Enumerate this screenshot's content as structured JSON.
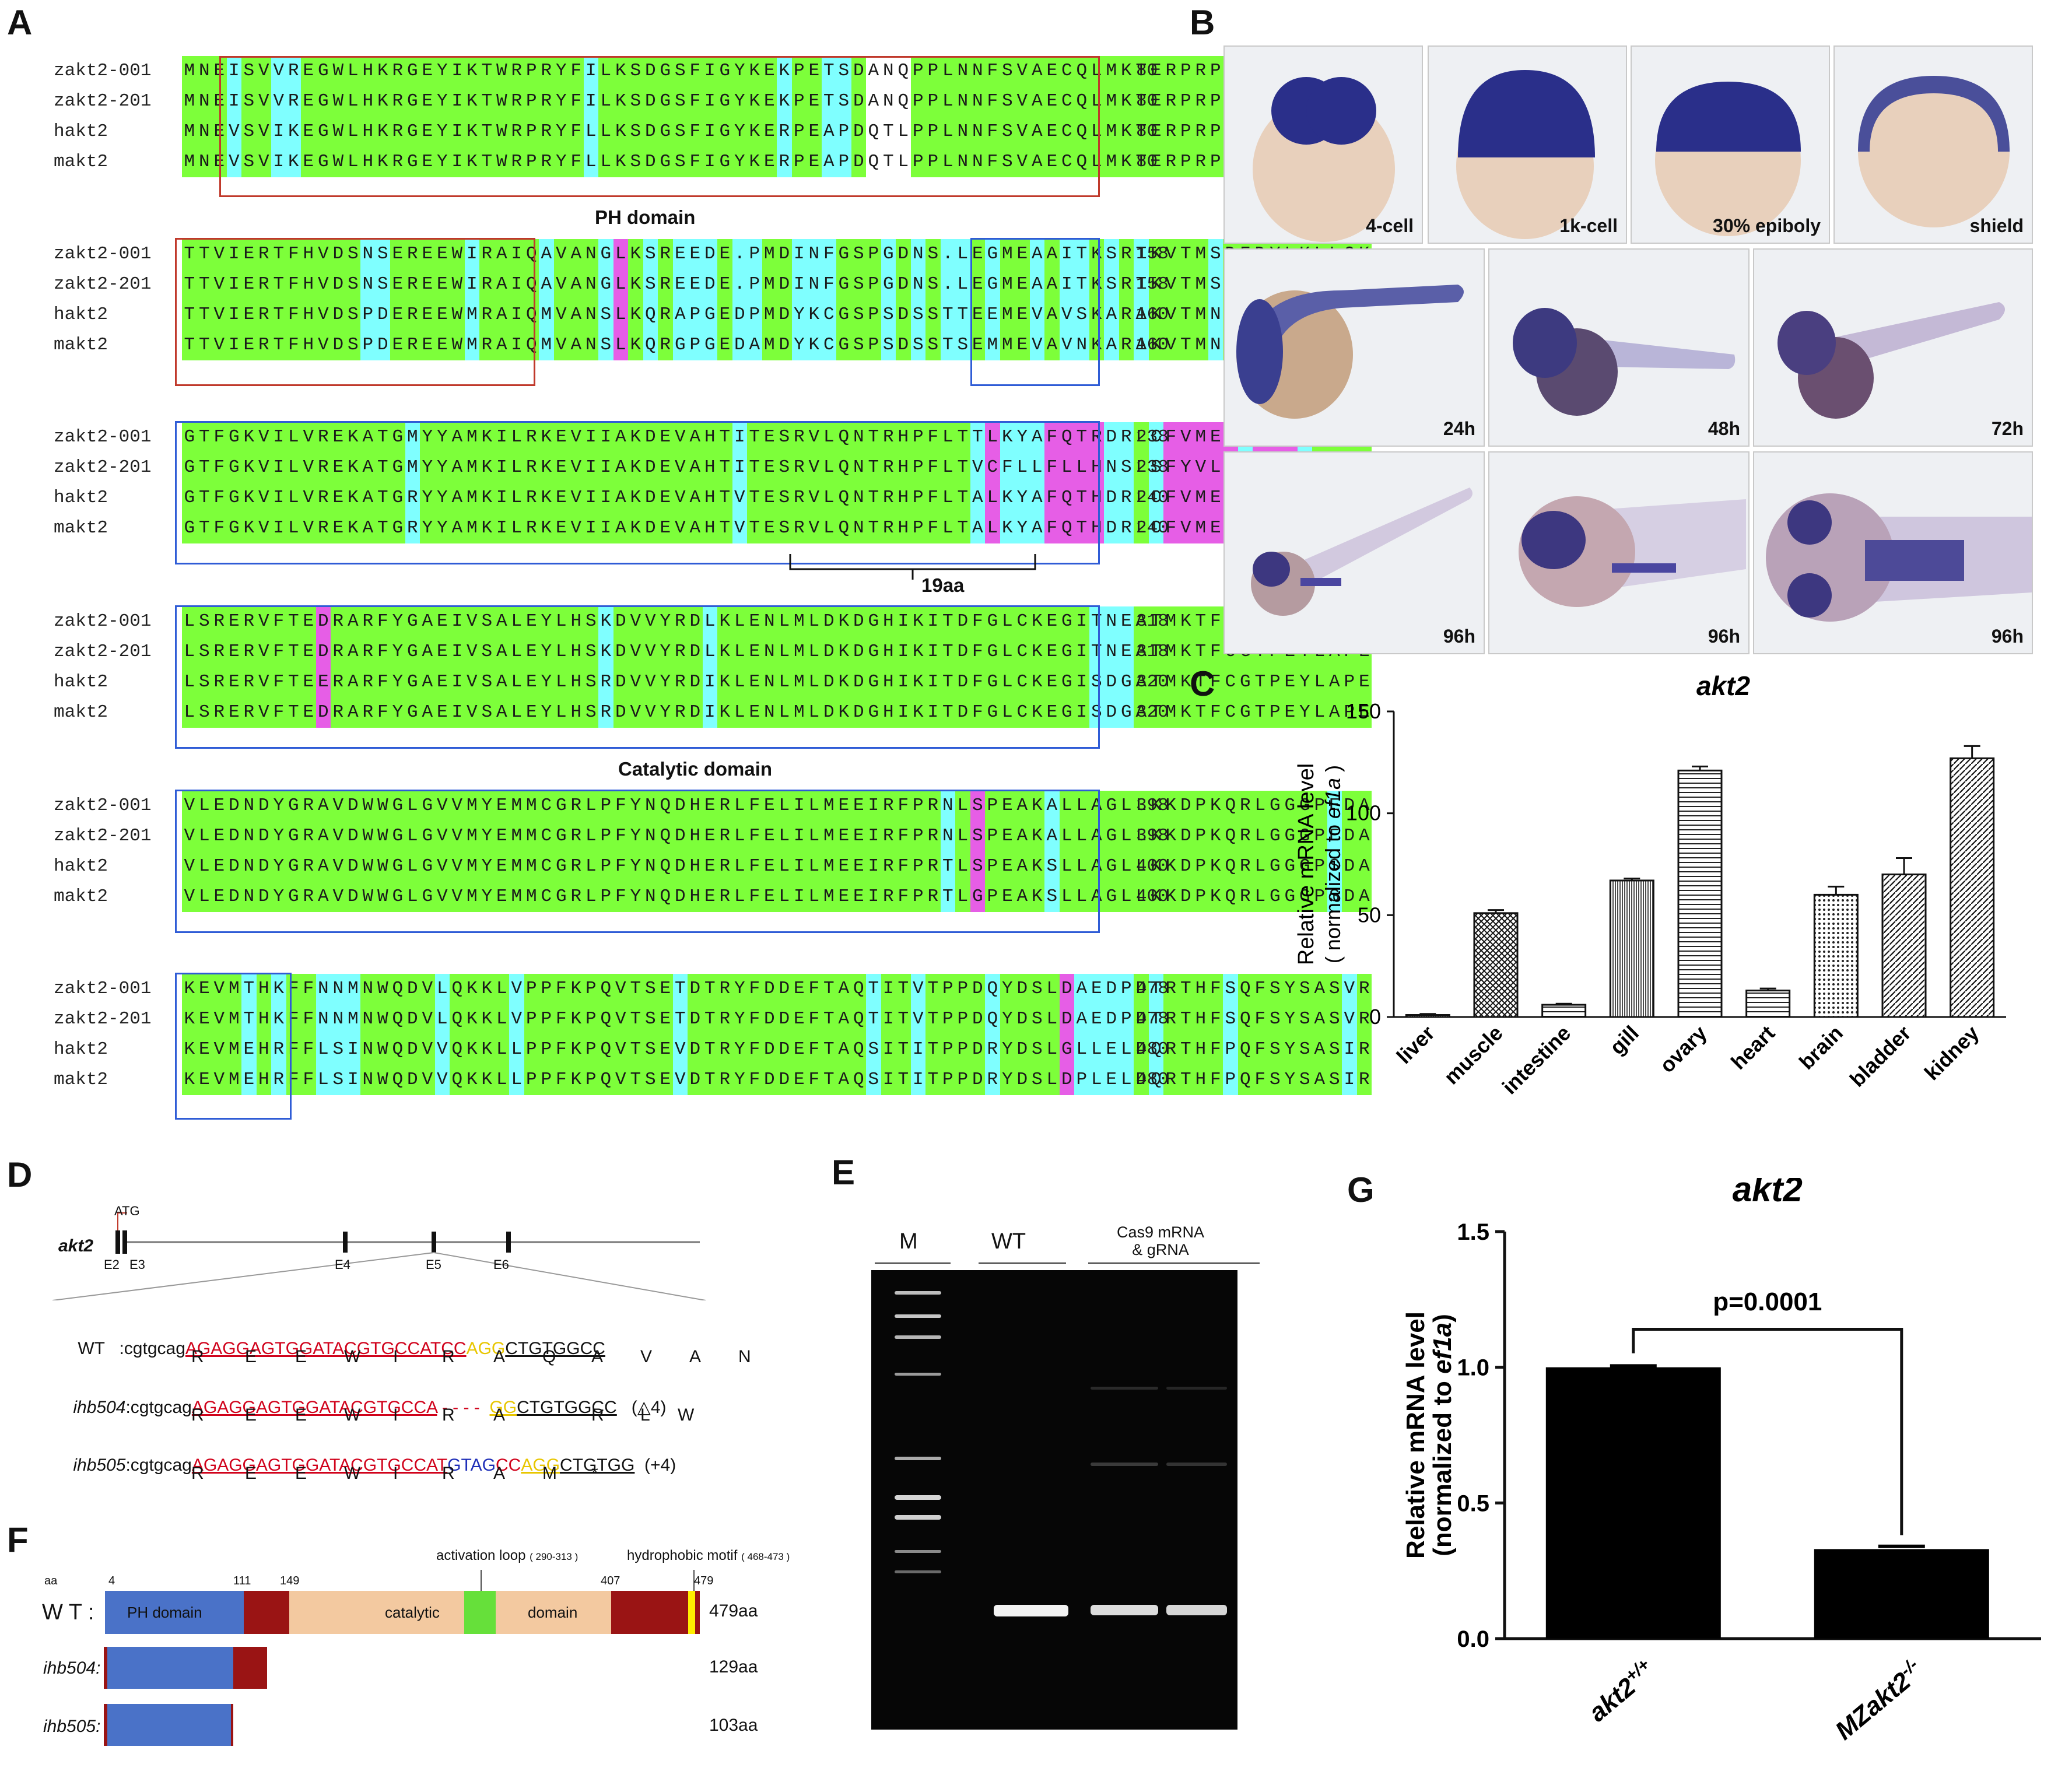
{
  "panels": {
    "a": "A",
    "b": "B",
    "c": "C",
    "d": "D",
    "e": "E",
    "f": "F",
    "g": "G"
  },
  "alignment": {
    "blocks": [
      {
        "rows": [
          {
            "name": "zakt2-001",
            "seq": "MNEISVVREGWLHKRGEYIKTWRPRYFILKSDGSFIGYKEKPETSDANQPPLNNFSVAECQLMKTERPRPNTFVIRCLQW",
            "num": "80"
          },
          {
            "name": "zakt2-201",
            "seq": "MNEISVVREGWLHKRGEYIKTWRPRYFILKSDGSFIGYKEKPETSDANQPPLNNFSVAECQLMKTERPRPNTFVIRCLQW",
            "num": "80"
          },
          {
            "name": "hakt2",
            "seq": "MNEVSVIKEGWLHKRGEYIKTWRPRYFLLKSDGSFIGYKERPEAPDQTLPPLNNFSVAECQLMKTERPRPNTFVIRCLQW",
            "num": "80"
          },
          {
            "name": "makt2",
            "seq": "MNEVSVIKEGWLHKRGEYIKTWRPRYFLLKSDGSFIGYKERPEAPDQTLPPLNNFSVAECQLMKTERPRPNTFVIRCLQW",
            "num": "80"
          }
        ]
      },
      {
        "rows": [
          {
            "name": "zakt2-001",
            "seq": "TTVIERTFHVDSNSEREEWIRAIQAVANGLKSREEDE.PMDINFGSPGDNS.LEGMEAAITKSRTKVTMSDFDYLKLLGK",
            "num": "158"
          },
          {
            "name": "zakt2-201",
            "seq": "TTVIERTFHVDSNSEREEWIRAIQAVANGLKSREEDE.PMDINFGSPGDNS.LEGMEAAITKSRTKVTMSDFDYLKLLGK",
            "num": "158"
          },
          {
            "name": "hakt2",
            "seq": "TTVIERTFHVDSPDEREEWMRAIQMVANSLKQRAPGEDPMDYKCGSPSDSSTTEEMEVAVSKARAKVTMNDFDYLKLLGK",
            "num": "160"
          },
          {
            "name": "makt2",
            "seq": "TTVIERTFHVDSPDEREEWMRAIQMVANSLKQRGPGEDAMDYKCGSPSDSSTSEMMEVAVNKARAKVTMNDFDYLKLLGK",
            "num": "160"
          }
        ]
      },
      {
        "rows": [
          {
            "name": "zakt2-001",
            "seq": "GTFGKVILVREKATGMYYAMKILRKEVIIAKDEVAHTITESRVLQNTRHPFLTTLKYAFQTRDRLCFVMEYANGGELFFH",
            "num": "238"
          },
          {
            "name": "zakt2-201",
            "seq": "GTFGKVILVREKATGMYYAMKILRKEVIIAKDEVAHTITESRVLQNTRHPFLTVCFLLFLLHNSLSFYVLLINSFQLFFH",
            "num": "238"
          },
          {
            "name": "hakt2",
            "seq": "GTFGKVILVREKATGRYYAMKILRKEVIIAKDEVAHTVTESRVLQNTRHPFLTALKYAFQTHDRLCFVMEYANGGELFFH",
            "num": "240"
          },
          {
            "name": "makt2",
            "seq": "GTFGKVILVREKATGRYYAMKILRKEVIIAKDEVAHTVTESRVLQNTRHPFLTALKYAFQTHDRLCFVMEYANGGELFFH",
            "num": "240"
          }
        ]
      },
      {
        "rows": [
          {
            "name": "zakt2-001",
            "seq": "LSRERVFTEDRARFYGAEIVSALEYLHSKDVVYRDLKLENLMLDKDGHIKITDFGLCKEGITNEATMKTFCGTPEYLAPE",
            "num": "318"
          },
          {
            "name": "zakt2-201",
            "seq": "LSRERVFTEDRARFYGAEIVSALEYLHSKDVVYRDLKLENLMLDKDGHIKITDFGLCKEGITNEATMKTFCGTPEYLAPE",
            "num": "318"
          },
          {
            "name": "hakt2",
            "seq": "LSRERVFTEERARFYGAEIVSALEYLHSRDVVYRDIKLENLMLDKDGHIKITDFGLCKEGISDGATMKTFCGTPEYLAPE",
            "num": "320"
          },
          {
            "name": "makt2",
            "seq": "LSRERVFTEDRARFYGAEIVSALEYLHSRDVVYRDIKLENLMLDKDGHIKITDFGLCKEGISDGATMKTFCGTPEYLAPE",
            "num": "320"
          }
        ]
      },
      {
        "rows": [
          {
            "name": "zakt2-001",
            "seq": "VLEDNDYGRAVDWWGLGVVMYEMMCGRLPFYNQDHERLFELILMEEIRFPRNLSPEAKALLAGLLKKDPKQRLGGGPEDA",
            "num": "398"
          },
          {
            "name": "zakt2-201",
            "seq": "VLEDNDYGRAVDWWGLGVVMYEMMCGRLPFYNQDHERLFELILMEEIRFPRNLSPEAKALLAGLLKKDPKQRLGGGPEDA",
            "num": "398"
          },
          {
            "name": "hakt2",
            "seq": "VLEDNDYGRAVDWWGLGVVMYEMMCGRLPFYNQDHERLFELILMEEIRFPRTLSPEAKSLLAGLLKKDPKQRLGGGPSDA",
            "num": "400"
          },
          {
            "name": "makt2",
            "seq": "VLEDNDYGRAVDWWGLGVVMYEMMCGRLPFYNQDHERLFELILMEEIRFPRTLGPEAKSLLAGLLKKDPKQRLGGGPSDA",
            "num": "400"
          }
        ]
      },
      {
        "rows": [
          {
            "name": "zakt2-001",
            "seq": "KEVMTHKFFNNMNWQDVLQKKLVPPFKPQVTSETDTRYFDDEFTAQTITVTPPDQYDSLDAEDPDTRTHFSQFSYSASVR",
            "num": "478"
          },
          {
            "name": "zakt2-201",
            "seq": "KEVMTHKFFNNMNWQDVLQKKLVPPFKPQVTSETDTRYFDDEFTAQTITVTPPDQYDSLDAEDPDTRTHFSQFSYSASVR",
            "num": "478"
          },
          {
            "name": "hakt2",
            "seq": "KEVMEHRFFLSINWQDVVQKKLLPPFKPQVTSEVDTRYFDDEFTAQSITITPPDRYDSLGLLELDQRTHFPQFSYSASIR",
            "num": "480"
          },
          {
            "name": "makt2",
            "seq": "KEVMEHRFFLSINWQDVVQKKLLPPFKPQVTSEVDTRYFDDEFTAQSITITPPDRYDSLDPLELDQRTHFPQFSYSASIR",
            "num": "480"
          }
        ]
      }
    ],
    "ph_domain_label": "PH domain",
    "catalytic_domain_label": "Catalytic domain",
    "bracket_label": "19aa"
  },
  "embryos": {
    "stages": [
      "4-cell",
      "1k-cell",
      "30% epiboly",
      "shield",
      "24h",
      "48h",
      "72h",
      "96h",
      "96h",
      "96h"
    ]
  },
  "chart_c": {
    "title": "akt2",
    "ylabel_line1": "Relative mRNA level",
    "ylabel_line2_prefix": "( normalized to ",
    "ylabel_line2_gene": "ef1a",
    "ylabel_line2_suffix": " )",
    "ticks": [
      "0",
      "50",
      "100",
      "150"
    ]
  },
  "chart_data": [
    {
      "type": "bar",
      "title": "akt2",
      "ylabel": "Relative mRNA level ( normalized to ef1a )",
      "categories": [
        "liver",
        "muscle",
        "intestine",
        "gill",
        "ovary",
        "heart",
        "brain",
        "bladder",
        "kidney"
      ],
      "values": [
        1,
        51,
        6,
        67,
        121,
        13,
        60,
        70,
        127
      ],
      "errors": [
        0.5,
        1.5,
        0.5,
        1,
        2,
        1,
        4,
        8,
        6
      ],
      "ylim": [
        0,
        150
      ],
      "yticks": [
        0,
        50,
        100,
        150
      ]
    },
    {
      "type": "bar",
      "title": "akt2",
      "ylabel": "Relative mRNA level (normalized to ef1a)",
      "categories": [
        "akt2+/+",
        "MZakt2-/-"
      ],
      "values": [
        1.0,
        0.33
      ],
      "errors": [
        0.005,
        0.01
      ],
      "ylim": [
        0,
        1.5
      ],
      "yticks": [
        0.0,
        0.5,
        1.0,
        1.5
      ],
      "annotation": "p=0.0001"
    }
  ],
  "panel_d": {
    "gene": "akt2",
    "atg": "ATG",
    "exons": [
      "E2",
      "E3",
      "E4",
      "E5",
      "E6"
    ],
    "wt": {
      "label": "WT",
      "seq_prefix": ":cgtgcag",
      "seq_red": "AGAGGAGTGGATACGTGCCATCC",
      "seq_yellow": "AGG",
      "seq_tail": "CTGTGGCC",
      "aa": [
        "R",
        "E",
        "E",
        "W",
        "I",
        "R",
        "A",
        "Q",
        "A",
        "V",
        "A",
        "N"
      ]
    },
    "ihb504": {
      "label": "ihb504",
      "seq_prefix": ":cgtgcag",
      "seq_red": "AGAGGAGTGGATACGTGCCA",
      "seq_del": "- - - -",
      "seq_yellow": "GG",
      "seq_tail": "CTGTGGCC",
      "note": "(△4)",
      "aa": [
        "R",
        "E",
        "E",
        "W",
        "I",
        "R",
        "A",
        "R",
        "L",
        "W"
      ]
    },
    "ihb505": {
      "label": "ihb505",
      "seq_prefix": ":cgtgcag",
      "seq_red": "AGAGGAGTGGATACGTGCCAT",
      "seq_blue": "GTAG",
      "seq_red2": "CC",
      "seq_yellow": "AGG",
      "seq_tail": "CTGTGG",
      "note": "(+4)",
      "aa": [
        "R",
        "E",
        "E",
        "W",
        "I",
        "R",
        "A",
        "M",
        "*"
      ]
    }
  },
  "panel_e": {
    "marker": "M",
    "wt": "WT",
    "cas9_line1": "Cas9 mRNA",
    "cas9_line2": "& gRNA"
  },
  "panel_f": {
    "aa_label": "aa",
    "pos": [
      "4",
      "111",
      "149",
      "407",
      "479"
    ],
    "activation_loop": "activation loop",
    "activation_range": "( 290-313 )",
    "hydrophobic_motif": "hydrophobic motif",
    "hydrophobic_range": "( 468-473 )",
    "wt_label": "W T :",
    "ph_label": "PH  domain",
    "catalytic_label": "catalytic",
    "domain_label": "domain",
    "wt_len": "479aa",
    "ihb504_label": "ihb504:",
    "ihb504_len": "129aa",
    "ihb505_label": "ihb505:",
    "ihb505_len": "103aa",
    "colors": {
      "ph": "#4a72c8",
      "dark": "#9a1414",
      "catalytic": "#f3c9a0",
      "loop": "#66e03a",
      "yellow": "#ffee00"
    }
  },
  "chart_g": {
    "title": "akt2",
    "ylabel_line1": "Relative mRNA level",
    "ylabel_line2_prefix": "(normalized to ",
    "ylabel_line2_gene": "ef1a",
    "ylabel_line2_suffix": ")",
    "ticks": [
      "0.0",
      "0.5",
      "1.0",
      "1.5"
    ],
    "pvalue": "p=0.0001",
    "cat1_base": "akt2",
    "cat1_sup": "+/+",
    "cat2_base": "MZakt2",
    "cat2_sup": "-/-"
  }
}
